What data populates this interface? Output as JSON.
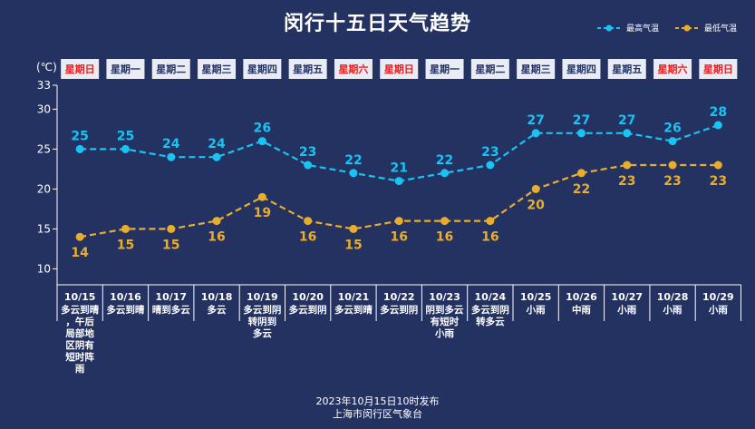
{
  "title": "闵行十五日天气趋势",
  "legend": {
    "high": "最高气温",
    "low": "最低气温"
  },
  "unit_label": "(℃)",
  "footer": {
    "line1": "2023年10月15日10时发布",
    "line2": "上海市闵行区气象台"
  },
  "colors": {
    "background": "#243262",
    "high": "#19c3f2",
    "low": "#e9ad2e",
    "weekend": "#e51e1e",
    "weekday": "#243262",
    "header_bg": "#e9ecf4"
  },
  "chart_data": {
    "type": "line",
    "title": "闵行十五日天气趋势",
    "ylabel": "(℃)",
    "ylim": [
      8,
      33
    ],
    "yticks": [
      10,
      15,
      20,
      25,
      30,
      33
    ],
    "categories": [
      "10/15",
      "10/16",
      "10/17",
      "10/18",
      "10/19",
      "10/20",
      "10/21",
      "10/22",
      "10/23",
      "10/24",
      "10/25",
      "10/26",
      "10/27",
      "10/28",
      "10/29"
    ],
    "weekdays": [
      "星期日",
      "星期一",
      "星期二",
      "星期三",
      "星期四",
      "星期五",
      "星期六",
      "星期日",
      "星期一",
      "星期二",
      "星期三",
      "星期四",
      "星期五",
      "星期六",
      "星期日"
    ],
    "weekend": [
      true,
      false,
      false,
      false,
      false,
      false,
      true,
      true,
      false,
      false,
      false,
      false,
      false,
      true,
      true
    ],
    "conditions": [
      [
        "多云到晴",
        "，午后",
        "局部地",
        "区阴有",
        "短时阵",
        "雨"
      ],
      [
        "多云到晴"
      ],
      [
        "晴到多云"
      ],
      [
        "多云"
      ],
      [
        "多云到阴",
        "转阴到",
        "多云"
      ],
      [
        "多云到阴"
      ],
      [
        "多云到晴"
      ],
      [
        "多云到阴"
      ],
      [
        "阴到多云",
        "有短时",
        "小雨"
      ],
      [
        "多云到阴",
        "转多云"
      ],
      [
        "小雨"
      ],
      [
        "中雨"
      ],
      [
        "小雨"
      ],
      [
        "小雨"
      ],
      [
        "小雨"
      ]
    ],
    "series": [
      {
        "name": "最高气温",
        "key": "high",
        "values": [
          25,
          25,
          24,
          24,
          26,
          23,
          22,
          21,
          22,
          23,
          27,
          27,
          27,
          26,
          28
        ]
      },
      {
        "name": "最低气温",
        "key": "low",
        "values": [
          14,
          15,
          15,
          16,
          19,
          16,
          15,
          16,
          16,
          16,
          20,
          22,
          23,
          23,
          23
        ]
      }
    ]
  }
}
